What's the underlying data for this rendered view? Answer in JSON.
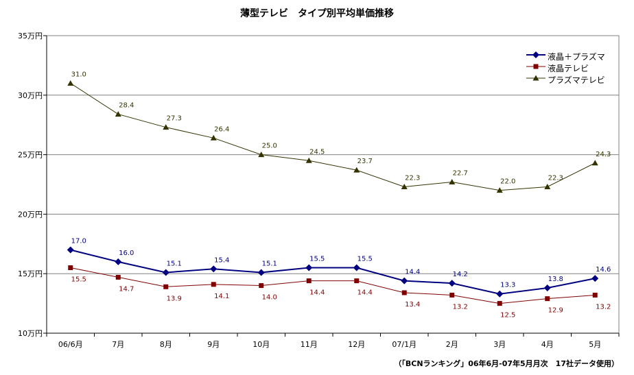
{
  "chart_data": {
    "type": "line",
    "title": "薄型テレビ　タイプ別平均単価推移",
    "source_note": "（「BCNランキング」06年6月-07年5月月次　17社データ使用）",
    "categories": [
      "06/6月",
      "7月",
      "8月",
      "9月",
      "10月",
      "11月",
      "12月",
      "07/1月",
      "2月",
      "3月",
      "4月",
      "5月"
    ],
    "y_ticks": [
      {
        "value": 10,
        "label": "10万円"
      },
      {
        "value": 15,
        "label": "15万円"
      },
      {
        "value": 20,
        "label": "20万円"
      },
      {
        "value": 25,
        "label": "25万円"
      },
      {
        "value": 30,
        "label": "30万円"
      },
      {
        "value": 35,
        "label": "35万円"
      }
    ],
    "ylim": [
      10,
      35
    ],
    "grid": true,
    "legend_position": "top-right",
    "series": [
      {
        "name": "液晶＋プラズマ",
        "values": [
          17.0,
          16.0,
          15.1,
          15.4,
          15.1,
          15.5,
          15.5,
          14.4,
          14.2,
          13.3,
          13.8,
          14.6
        ],
        "color": "#000080",
        "marker": "diamond",
        "label_position": "above",
        "label_color": "#000080"
      },
      {
        "name": "液晶テレビ",
        "values": [
          15.5,
          14.7,
          13.9,
          14.1,
          14.0,
          14.4,
          14.4,
          13.4,
          13.2,
          12.5,
          12.9,
          13.2
        ],
        "color": "#800000",
        "marker": "square",
        "label_position": "below",
        "label_color": "#800000"
      },
      {
        "name": "プラズマテレビ",
        "values": [
          31.0,
          28.4,
          27.3,
          26.4,
          25.0,
          24.5,
          23.7,
          22.3,
          22.7,
          22.0,
          22.3,
          24.3
        ],
        "color": "#333300",
        "marker": "triangle",
        "label_position": "above",
        "label_color": "#333300"
      }
    ]
  }
}
